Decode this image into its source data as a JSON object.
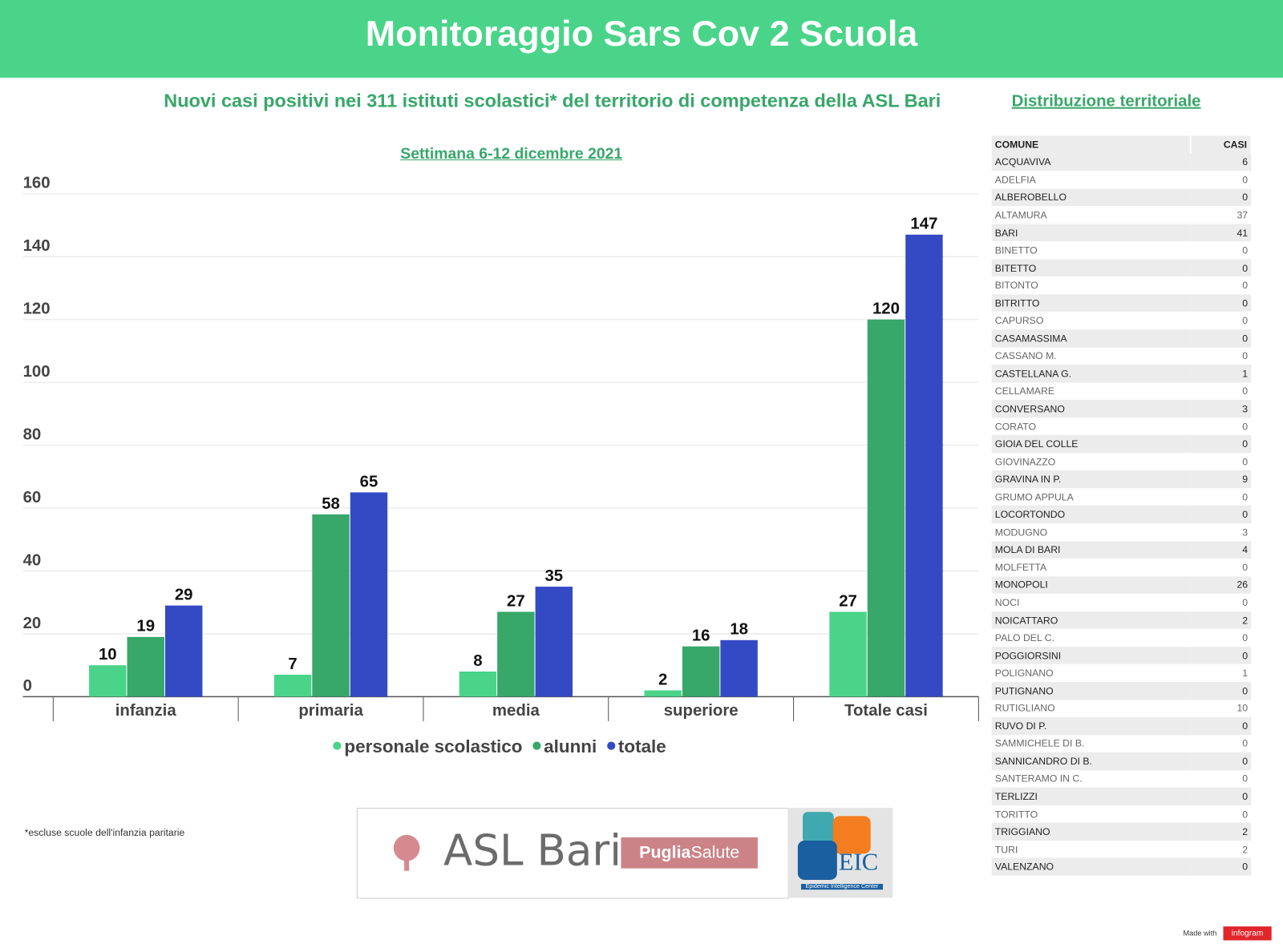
{
  "header": {
    "title": "Monitoraggio Sars Cov 2 Scuola"
  },
  "subtitle": "Nuovi casi positivi nei 311 istituti scolastici* del territorio di competenza della ASL Bari",
  "week": "Settimana 6-12 dicembre 2021",
  "footnote": "*escluse scuole dell'infanzia paritarie",
  "colors": {
    "header": "#4ad489",
    "personale": "#4ad489",
    "alunni": "#37a76a",
    "totale": "#344ac4",
    "accent_text": "#37a76a"
  },
  "chart_data": {
    "type": "bar",
    "categories": [
      "infanzia",
      "primaria",
      "media",
      "superiore",
      "Totale casi"
    ],
    "series": [
      {
        "name": "personale scolastico",
        "values": [
          10,
          7,
          8,
          2,
          27
        ]
      },
      {
        "name": "alunni",
        "values": [
          19,
          58,
          27,
          16,
          120
        ]
      },
      {
        "name": "totale",
        "values": [
          29,
          65,
          35,
          18,
          147
        ]
      }
    ],
    "yticks": [
      0,
      20,
      40,
      60,
      80,
      100,
      120,
      140,
      160
    ],
    "ylim": [
      0,
      160
    ],
    "grid": true,
    "legend": "bottom"
  },
  "logos": {
    "asl": "ASL Bari",
    "puglia_bold": "Puglia",
    "puglia_rest": "Salute",
    "eic": "EIC",
    "eic_caption": "Epidemic Intelligence Center"
  },
  "table": {
    "title": "Distribuzione territoriale",
    "headers": [
      "COMUNE",
      "CASI"
    ],
    "rows": [
      [
        "ACQUAVIVA",
        "6"
      ],
      [
        "ADELFIA",
        "0"
      ],
      [
        "ALBEROBELLO",
        "0"
      ],
      [
        "ALTAMURA",
        "37"
      ],
      [
        "BARI",
        "41"
      ],
      [
        "BINETTO",
        "0"
      ],
      [
        "BITETTO",
        "0"
      ],
      [
        "BITONTO",
        "0"
      ],
      [
        "BITRITTO",
        "0"
      ],
      [
        " CAPURSO",
        "0"
      ],
      [
        "CASAMASSIMA",
        "0"
      ],
      [
        "CASSANO M.",
        "0"
      ],
      [
        "CASTELLANA  G.",
        "1"
      ],
      [
        "CELLAMARE",
        "0"
      ],
      [
        "CONVERSANO",
        "3"
      ],
      [
        "CORATO",
        "0"
      ],
      [
        "GIOIA DEL COLLE",
        "0"
      ],
      [
        "GIOVINAZZO",
        "0"
      ],
      [
        "GRAVINA IN P.",
        "9"
      ],
      [
        "GRUMO APPULA",
        "0"
      ],
      [
        "LOCORTONDO",
        "0"
      ],
      [
        "MODUGNO",
        "3"
      ],
      [
        "MOLA DI BARI",
        "4"
      ],
      [
        "MOLFETTA",
        "0"
      ],
      [
        "MONOPOLI",
        "26"
      ],
      [
        "NOCI",
        "0"
      ],
      [
        "NOICATTARO",
        "2"
      ],
      [
        "PALO DEL C.",
        "0"
      ],
      [
        "POGGIORSINI",
        "0"
      ],
      [
        "POLIGNANO",
        "1"
      ],
      [
        "PUTIGNANO",
        "0"
      ],
      [
        "RUTIGLIANO",
        "10"
      ],
      [
        "RUVO DI P.",
        "0"
      ],
      [
        "SAMMICHELE DI B.",
        "0"
      ],
      [
        "SANNICANDRO DI B.",
        "0"
      ],
      [
        "SANTERAMO IN C.",
        "0"
      ],
      [
        "TERLIZZI",
        "0"
      ],
      [
        "TORITTO",
        "0"
      ],
      [
        "TRIGGIANO",
        "2"
      ],
      [
        "TURI",
        "2"
      ],
      [
        "VALENZANO",
        "0"
      ]
    ]
  },
  "made_with": "Made with",
  "infogram": "infogram"
}
